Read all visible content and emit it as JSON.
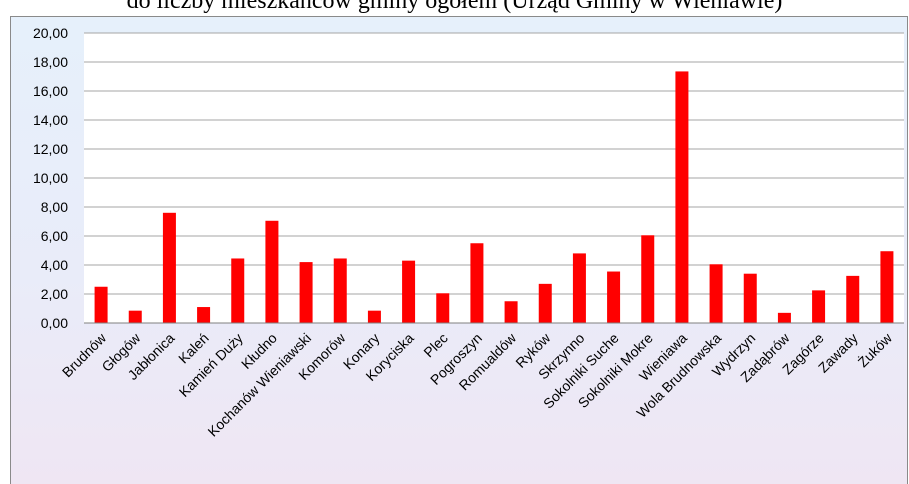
{
  "caption": "do liczby mieszkańców gminy ogółem (Urząd Gminy w Wieniawie)",
  "colors": {
    "bar": "#ff0000",
    "plot_bg": "#ffffff",
    "grid": "#a6a6a6"
  },
  "chart_data": {
    "type": "bar",
    "title": "",
    "xlabel": "",
    "ylabel": "",
    "ylim": [
      0,
      20
    ],
    "yticks": [
      "0,00",
      "2,00",
      "4,00",
      "6,00",
      "8,00",
      "10,00",
      "12,00",
      "14,00",
      "16,00",
      "18,00",
      "20,00"
    ],
    "grid": true,
    "legend": "none",
    "categories": [
      "Brudnów",
      "Głogów",
      "Jabłonica",
      "Kaleń",
      "Kamień Duży",
      "Kłudno",
      "Kochanów Wieniawski",
      "Komorów",
      "Konary",
      "Koryciska",
      "Plec",
      "Pogroszyn",
      "Romualdów",
      "Ryków",
      "Skrzynno",
      "Sokolniki Suche",
      "Sokolniki Mokre",
      "Wieniawa",
      "Wola Brudnowska",
      "Wydrzyn",
      "Zadąbrów",
      "Zagórze",
      "Zawady",
      "Żuków"
    ],
    "values": [
      2.5,
      0.85,
      7.6,
      1.1,
      4.45,
      7.05,
      4.2,
      4.45,
      0.85,
      4.3,
      2.05,
      5.5,
      1.5,
      2.7,
      4.8,
      3.55,
      6.05,
      17.35,
      4.05,
      3.4,
      0.7,
      2.25,
      3.25,
      4.95
    ]
  }
}
